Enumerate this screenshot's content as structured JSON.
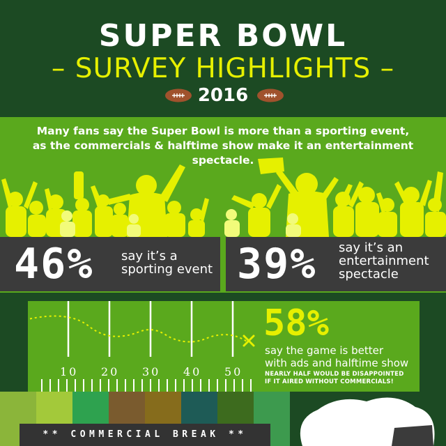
{
  "header": {
    "title": "SUPER BOWL",
    "subtitle": "– SURVEY HIGHLIGHTS –",
    "year": "2016"
  },
  "intro": {
    "line1": "Many fans say the Super Bowl is more than a sporting event,",
    "line2": "as the commercials & halftime show make it an entertainment spectacle."
  },
  "stats": [
    {
      "value": "46%",
      "line1": "say it’s a",
      "line2": "sporting event",
      "line3": ""
    },
    {
      "value": "39%",
      "line1": "say it’s an",
      "line2": "entertainment",
      "line3": "spectacle"
    }
  ],
  "field": {
    "yard_numbers": [
      "10",
      "20",
      "30",
      "40",
      "50"
    ],
    "value": "58%",
    "line1": "say the game is better",
    "line2": "with ads and halftime show",
    "note1": "NEARLY HALF WOULD BE DISAPPOINTED",
    "note2": "IF IT AIRED WITHOUT COMMERCIALS!"
  },
  "commercial_break": {
    "label": "** COMMERCIAL BREAK **",
    "stripe_colors": [
      "#8bb53a",
      "#a3c93a",
      "#2ea24f",
      "#7a5b2e",
      "#866c1c",
      "#1e5b56",
      "#3d6b1e",
      "#3d9a4e",
      "#1c4a23"
    ]
  },
  "colors": {
    "dark_green": "#1c4a23",
    "field_green": "#5aa91d",
    "accent_yellow": "#e6f000",
    "dark_gray": "#3b3b3b"
  }
}
